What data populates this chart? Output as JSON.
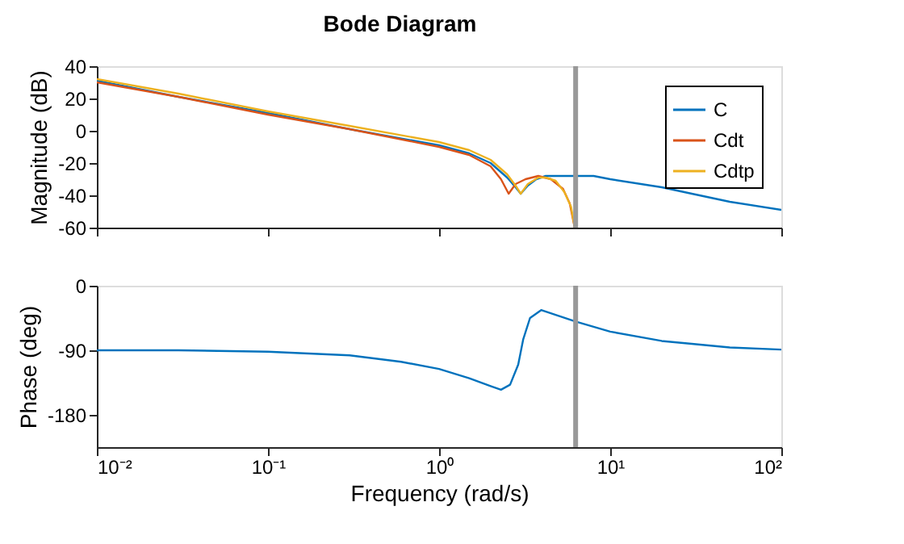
{
  "chart_data": [
    {
      "type": "line",
      "title": "Bode Diagram",
      "ylabel": "Magnitude (dB)",
      "log": "x",
      "xlim": [
        0.01,
        100
      ],
      "xticks": [
        {
          "value": 0.01,
          "label": null
        },
        {
          "value": 0.1,
          "label": null
        },
        {
          "value": 1,
          "label": null
        },
        {
          "value": 10,
          "label": null
        },
        {
          "value": 100,
          "label": null
        }
      ],
      "ylim": [
        -60,
        40
      ],
      "yticks": [
        -60,
        -40,
        -20,
        0,
        20,
        40
      ],
      "tick_labels": "y",
      "legend": "top right",
      "grid": false,
      "ref_lines": [
        {
          "axis": "x",
          "value": 6.28,
          "color": "#999999"
        }
      ],
      "series": [
        {
          "name": "C",
          "color": "#0072bd",
          "x": [
            0.01,
            0.03,
            0.1,
            0.3,
            1,
            1.5,
            2,
            2.5,
            2.8,
            3,
            3.3,
            3.7,
            4.2,
            5,
            6.28,
            8,
            10,
            20,
            30,
            50,
            100
          ],
          "values": [
            31,
            21,
            11,
            1,
            -9,
            -14,
            -20,
            -29,
            -35,
            -39,
            -34,
            -30,
            -28,
            -28,
            -28,
            -28,
            -30,
            -35,
            -39,
            -44,
            -49
          ]
        },
        {
          "name": "Cdt",
          "color": "#d95319",
          "x": [
            0.01,
            0.03,
            0.1,
            0.3,
            1,
            1.5,
            2,
            2.3,
            2.55,
            2.8,
            3.2,
            3.8,
            4.5,
            5.3,
            5.8,
            6.2
          ],
          "values": [
            30,
            21,
            10,
            1,
            -10,
            -15,
            -22,
            -30,
            -39,
            -33,
            -30,
            -28,
            -30,
            -36,
            -45,
            -60
          ]
        },
        {
          "name": "Cdtp",
          "color": "#edb120",
          "x": [
            0.01,
            0.03,
            0.1,
            0.3,
            1,
            1.5,
            2,
            2.5,
            2.8,
            3,
            3.3,
            3.8,
            4.2,
            4.8,
            5.4,
            5.9,
            6.2
          ],
          "values": [
            32,
            23,
            12,
            3,
            -7,
            -12,
            -18,
            -27,
            -34,
            -39,
            -33,
            -29,
            -29,
            -31,
            -38,
            -47,
            -60
          ]
        }
      ]
    },
    {
      "type": "line",
      "xlabel": "Frequency (rad/s)",
      "ylabel": "Phase (deg)",
      "log": "x",
      "xlim": [
        0.01,
        100
      ],
      "xticks": [
        {
          "value": 0.01,
          "label": "10⁻²"
        },
        {
          "value": 0.1,
          "label": "10⁻¹"
        },
        {
          "value": 1,
          "label": "10⁰"
        },
        {
          "value": 10,
          "label": "10¹"
        },
        {
          "value": 100,
          "label": "10²"
        }
      ],
      "ylim": [
        -225,
        0
      ],
      "yticks": [
        -180,
        -90,
        0
      ],
      "grid": false,
      "ref_lines": [
        {
          "axis": "x",
          "value": 6.28,
          "color": "#999999"
        }
      ],
      "series": [
        {
          "color": "#0072bd",
          "x": [
            0.01,
            0.03,
            0.1,
            0.3,
            0.6,
            1,
            1.5,
            2,
            2.3,
            2.6,
            2.9,
            3.1,
            3.4,
            3.95,
            5,
            6.28,
            10,
            20,
            30,
            50,
            100
          ],
          "values": [
            -90,
            -90,
            -92,
            -97,
            -106,
            -116,
            -129,
            -140,
            -145,
            -138,
            -110,
            -75,
            -45,
            -34,
            -42,
            -50,
            -64,
            -77,
            -81,
            -86,
            -89
          ]
        }
      ]
    }
  ]
}
